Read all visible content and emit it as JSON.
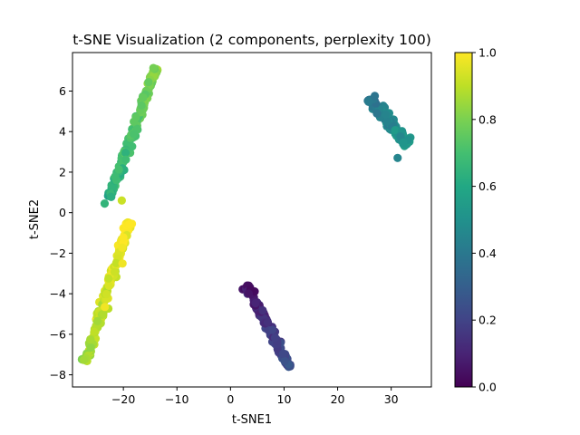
{
  "chart_data": {
    "type": "scatter",
    "title": "t-SNE Visualization (2 components, perplexity 100)",
    "xlabel": "t-SNE1",
    "ylabel": "t-SNE2",
    "xlim": [
      -29.5,
      37.5
    ],
    "ylim": [
      -8.6,
      7.9
    ],
    "x_ticks": [
      -20,
      -10,
      0,
      10,
      20,
      30
    ],
    "y_ticks": [
      -8,
      -6,
      -4,
      -2,
      0,
      2,
      4,
      6
    ],
    "x_tick_labels": [
      "−20",
      "−10",
      "0",
      "10",
      "20",
      "30"
    ],
    "y_tick_labels": [
      "−8",
      "−6",
      "−4",
      "−2",
      "0",
      "2",
      "4",
      "6"
    ],
    "grid": false,
    "colormap": "viridis",
    "colorbar": {
      "range": [
        0.0,
        1.0
      ],
      "ticks": [
        0.0,
        0.2,
        0.4,
        0.6,
        0.8,
        1.0
      ],
      "tick_labels": [
        "0.0",
        "0.2",
        "0.4",
        "0.6",
        "0.8",
        "1.0"
      ]
    },
    "clusters": [
      {
        "x_from": -22.5,
        "y_from": 0.8,
        "x_to": -14.0,
        "y_to": 7.1,
        "half_width": 0.55,
        "count": 180,
        "color_from": 0.62,
        "color_to": 0.82
      },
      {
        "x_from": -27.0,
        "y_from": -7.3,
        "x_to": -19.0,
        "y_to": -0.5,
        "half_width": 0.6,
        "count": 180,
        "color_from": 0.85,
        "color_to": 1.0
      },
      {
        "x_from": 3.0,
        "y_from": -3.6,
        "x_to": 11.0,
        "y_to": -7.6,
        "half_width": 0.55,
        "count": 160,
        "color_from": 0.05,
        "color_to": 0.25
      },
      {
        "x_from": 26.0,
        "y_from": 5.6,
        "x_to": 33.0,
        "y_to": 3.4,
        "half_width": 0.7,
        "count": 170,
        "color_from": 0.38,
        "color_to": 0.52
      }
    ],
    "outliers": [
      {
        "x": -20.3,
        "y": 0.6,
        "c": 0.92
      },
      {
        "x": -23.5,
        "y": 0.45,
        "c": 0.65
      },
      {
        "x": 31.2,
        "y": 2.7,
        "c": 0.45
      }
    ]
  }
}
